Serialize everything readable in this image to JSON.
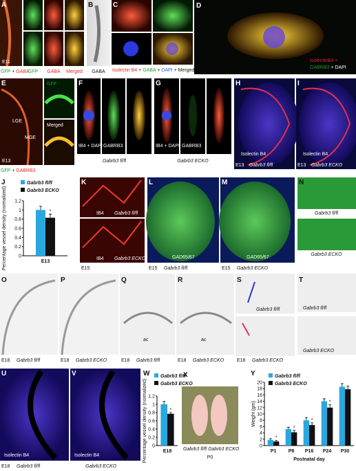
{
  "panels": {
    "A": {
      "letter": "A",
      "stage": "E11",
      "legend": [
        "GFP",
        "+",
        "GABA"
      ],
      "columns": [
        "GFP",
        "GABA",
        "Merged"
      ]
    },
    "B": {
      "letter": "B",
      "label": "GABA"
    },
    "C": {
      "letter": "C",
      "legend": [
        "Isolectin B4",
        "+",
        "GABA",
        "+",
        "DAPI",
        "+ Merged"
      ]
    },
    "D": {
      "letter": "D",
      "legend": [
        "IsolectinB4 +",
        "GABRB3",
        "+ DAPI"
      ]
    },
    "E": {
      "letter": "E",
      "stage": "E13",
      "regions": [
        "LGE",
        "MGE"
      ],
      "insets": [
        "GFP",
        "Merged"
      ],
      "legend": [
        "GFP",
        "+",
        "GABRB3"
      ]
    },
    "F": {
      "letter": "F",
      "strips": [
        "IB4 + DAPI",
        "GABRB3"
      ],
      "genotype": "Gabrb3 fl/fl"
    },
    "G": {
      "letter": "G",
      "strips": [
        "IB4 + DAPI",
        "GABRB3"
      ],
      "genotype": "Gabrb3 ECKO"
    },
    "H": {
      "letter": "H",
      "stain": "Isolectin B4",
      "stage": "E13",
      "genotype": "Gabrb3 fl/fl"
    },
    "I": {
      "letter": "I",
      "stain": "Isolectin B4",
      "stage": "E13",
      "genotype": "Gabrb3 ECKO"
    },
    "K": {
      "letter": "K",
      "stage": "E15",
      "stains": [
        "IB4",
        "IB4"
      ],
      "genotypes": [
        "Gabrb3 fl/fl",
        "Gabrb3 ECKO"
      ]
    },
    "L": {
      "letter": "L",
      "stain": "GAD65/67",
      "stage": "E15",
      "genotype": "Gabrb3 fl/fl"
    },
    "M": {
      "letter": "M",
      "stain": "GAD65/67",
      "stage": "E15",
      "genotype": "Gabrb3 ECKO"
    },
    "N": {
      "letter": "N",
      "genotypes": [
        "Gabrb3 fl/fl",
        "Gabrb3 ECKO"
      ]
    },
    "O": {
      "letter": "O",
      "stage": "E18",
      "genotype": "Gabrb3 fl/fl"
    },
    "P": {
      "letter": "P",
      "stage": "E18",
      "genotype": "Gabrb3 ECKO"
    },
    "Q": {
      "letter": "Q",
      "structure": "ac",
      "stage": "E18",
      "genotype": "Gabrb3 fl/fl"
    },
    "R": {
      "letter": "R",
      "structure": "ac",
      "stage": "E18",
      "genotype": "Gabrb3 ECKO"
    },
    "S": {
      "letter": "S",
      "stage": "E18",
      "genotypes": [
        "Gabrb3 fl/fl",
        "Gabrb3 ECKO"
      ]
    },
    "T": {
      "letter": "T",
      "genotypes": [
        "Gabrb3 fl/fl",
        "Gabrb3 ECKO"
      ]
    },
    "U": {
      "letter": "U",
      "stain": "Isolectin B4",
      "stage": "E18",
      "genotype": "Gabrb3 fl/fl"
    },
    "V": {
      "letter": "V",
      "stain": "Isolectin B4",
      "genotype": "Gabrb3 ECKO"
    },
    "X": {
      "letter": "X",
      "caption": [
        "Gabrb3 fl/fl",
        "Gabrb3 ECKO"
      ],
      "stage": "P0"
    }
  },
  "chart_data": [
    {
      "type": "bar",
      "letter": "J",
      "ylabel": "Percentage vessel density (normalized)",
      "categories": [
        "E13"
      ],
      "series": [
        {
          "name": "Gabrb3 fl/fl",
          "color": "#29a8e0",
          "values": [
            1
          ],
          "errors": [
            0.08
          ]
        },
        {
          "name": "Gabrb3 ECKO",
          "color": "#111111",
          "values": [
            0.83
          ],
          "errors": [
            0.08
          ]
        }
      ],
      "ylim": [
        0,
        1.2
      ],
      "yticks": [
        0,
        0.2,
        0.4,
        0.6,
        0.8,
        1,
        1.2
      ],
      "annotations": [
        "*"
      ]
    },
    {
      "type": "bar",
      "letter": "W",
      "ylabel": "Percentage vessel density (normalized)",
      "categories": [
        "E18"
      ],
      "series": [
        {
          "name": "Gabrb3 fl/fl",
          "color": "#29a8e0",
          "values": [
            1
          ],
          "errors": [
            0.07
          ]
        },
        {
          "name": "Gabrb3 ECKO",
          "color": "#111111",
          "values": [
            0.77
          ],
          "errors": [
            0.03
          ]
        }
      ],
      "ylim": [
        0,
        1.2
      ],
      "yticks": [
        0,
        0.2,
        0.4,
        0.6,
        0.8,
        1,
        1.2
      ],
      "annotations": [
        "*"
      ]
    },
    {
      "type": "bar",
      "letter": "Y",
      "ylabel": "Weight (gm)",
      "xlabel": "Postnatal day",
      "categories": [
        "P1",
        "P8",
        "P16",
        "P24",
        "P30"
      ],
      "series": [
        {
          "name": "Gabrb3 fl/fl",
          "color": "#29a8e0",
          "values": [
            1.8,
            5.2,
            8.0,
            14.0,
            18.6
          ],
          "errors": [
            0.4,
            0.6,
            0.8,
            0.8,
            1.0
          ]
        },
        {
          "name": "Gabrb3 ECKO",
          "color": "#111111",
          "values": [
            1.3,
            4.2,
            6.5,
            12.0,
            17.8
          ],
          "errors": [
            0.3,
            0.6,
            0.7,
            0.9,
            1.0
          ]
        }
      ],
      "ylim": [
        0,
        20
      ],
      "yticks": [
        0,
        2,
        4,
        6,
        8,
        10,
        12,
        14,
        16,
        18,
        20
      ],
      "annotations": [
        "*",
        "*",
        "*",
        "*"
      ]
    }
  ]
}
